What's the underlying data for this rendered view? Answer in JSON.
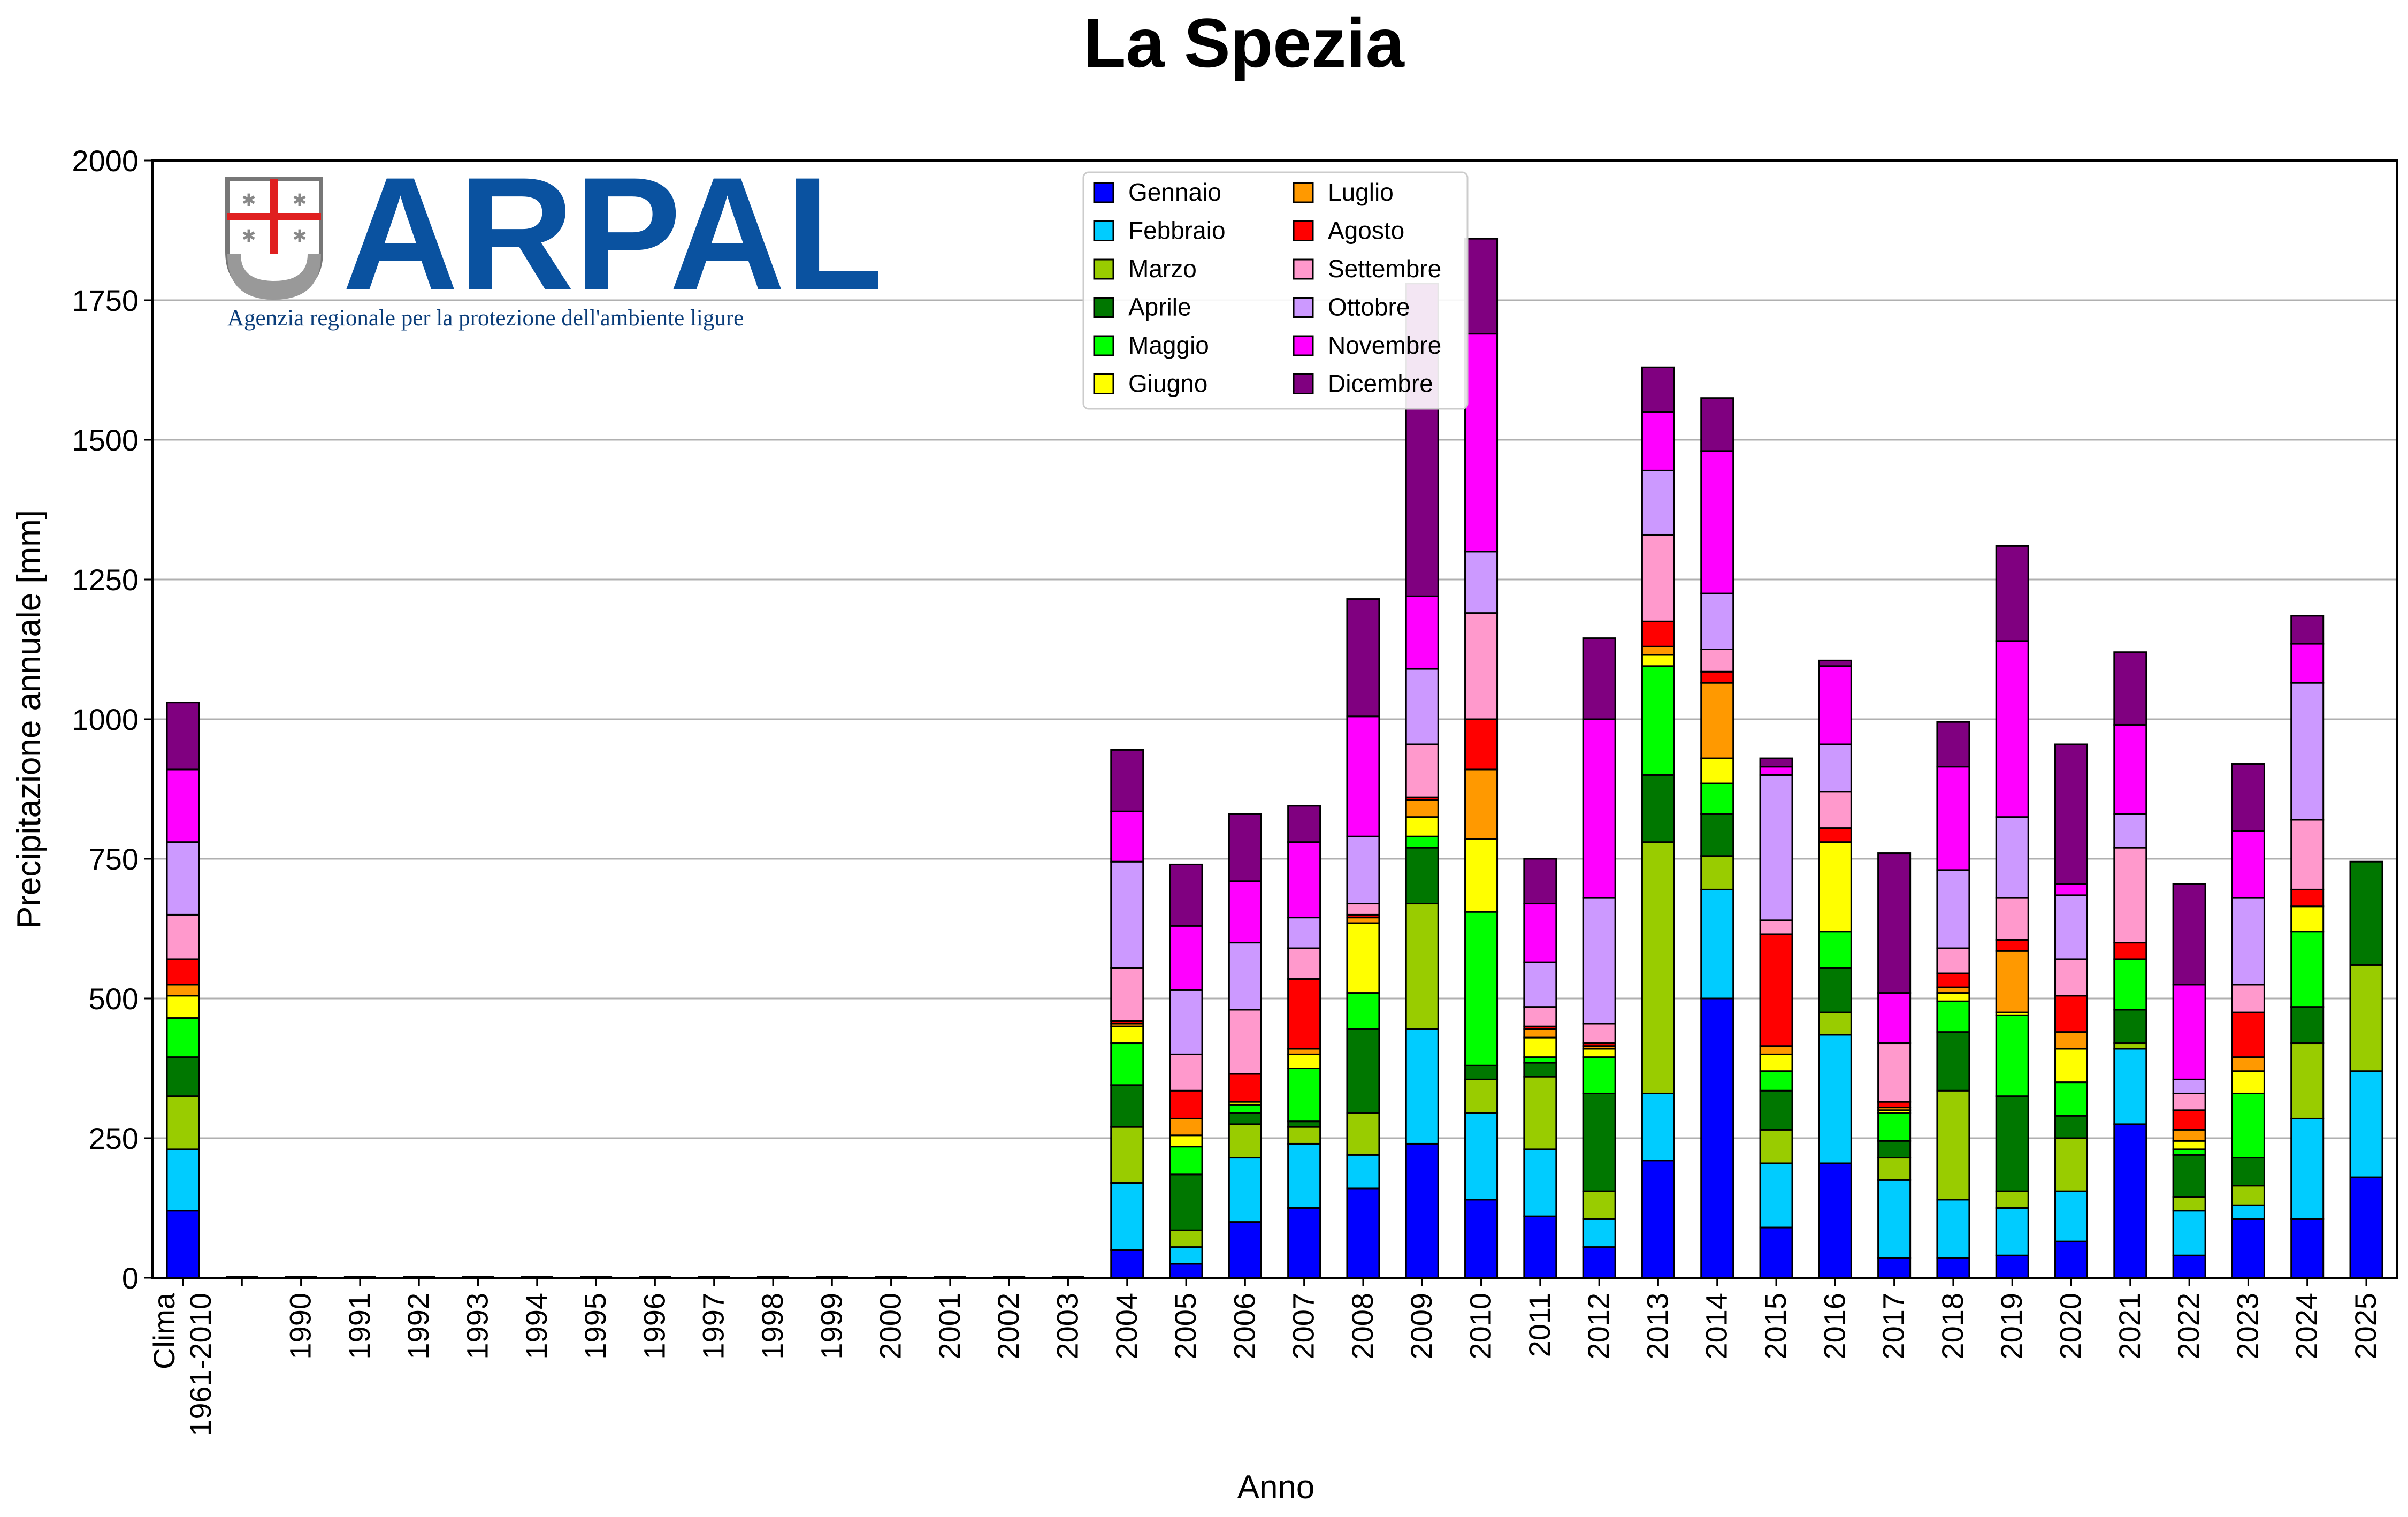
{
  "chart_data": {
    "type": "bar",
    "stacked": true,
    "title": "La Spezia",
    "xlabel": "Anno",
    "ylabel": "Precipitazione annuale [mm]",
    "ylim": [
      0,
      2000
    ],
    "yticks": [
      0,
      250,
      500,
      750,
      1000,
      1250,
      1500,
      1750,
      2000
    ],
    "grid": "horizontal",
    "legend_position": "top-center",
    "legend_columns": 2,
    "categories": [
      "Clima\n1961-2010",
      "",
      "1990",
      "1991",
      "1992",
      "1993",
      "1994",
      "1995",
      "1996",
      "1997",
      "1998",
      "1999",
      "2000",
      "2001",
      "2002",
      "2003",
      "2004",
      "2005",
      "2006",
      "2007",
      "2008",
      "2009",
      "2010",
      "2011",
      "2012",
      "2013",
      "2014",
      "2015",
      "2016",
      "2017",
      "2018",
      "2019",
      "2020",
      "2021",
      "2022",
      "2023",
      "2024",
      "2025"
    ],
    "series": [
      {
        "name": "Gennaio",
        "color": "#0000ff",
        "values": [
          120,
          0,
          0,
          0,
          0,
          0,
          0,
          0,
          0,
          0,
          0,
          0,
          0,
          0,
          0,
          0,
          50,
          25,
          100,
          125,
          160,
          240,
          140,
          110,
          55,
          210,
          500,
          90,
          205,
          35,
          35,
          40,
          65,
          275,
          40,
          105,
          105,
          180
        ]
      },
      {
        "name": "Febbraio",
        "color": "#00ccff",
        "values": [
          110,
          0,
          0,
          0,
          0,
          0,
          0,
          0,
          0,
          0,
          0,
          0,
          0,
          0,
          0,
          0,
          120,
          30,
          115,
          115,
          60,
          205,
          155,
          120,
          50,
          120,
          195,
          115,
          230,
          140,
          105,
          85,
          90,
          135,
          80,
          25,
          180,
          190
        ]
      },
      {
        "name": "Marzo",
        "color": "#99cc00",
        "values": [
          95,
          0,
          0,
          0,
          0,
          0,
          0,
          0,
          0,
          0,
          0,
          0,
          0,
          0,
          0,
          0,
          100,
          30,
          60,
          30,
          75,
          225,
          60,
          130,
          50,
          450,
          60,
          60,
          40,
          40,
          195,
          30,
          95,
          10,
          25,
          35,
          135,
          190
        ]
      },
      {
        "name": "Aprile",
        "color": "#007700",
        "values": [
          70,
          0,
          0,
          0,
          0,
          0,
          0,
          0,
          0,
          0,
          0,
          0,
          0,
          0,
          0,
          0,
          75,
          100,
          20,
          10,
          150,
          100,
          25,
          25,
          175,
          120,
          75,
          70,
          80,
          30,
          105,
          170,
          40,
          60,
          75,
          50,
          65,
          185
        ]
      },
      {
        "name": "Maggio",
        "color": "#00ff00",
        "values": [
          70,
          0,
          0,
          0,
          0,
          0,
          0,
          0,
          0,
          0,
          0,
          0,
          0,
          0,
          0,
          0,
          75,
          50,
          15,
          95,
          65,
          20,
          275,
          10,
          65,
          195,
          55,
          35,
          65,
          50,
          55,
          145,
          60,
          90,
          10,
          115,
          135,
          0
        ]
      },
      {
        "name": "Giugno",
        "color": "#ffff00",
        "values": [
          40,
          0,
          0,
          0,
          0,
          0,
          0,
          0,
          0,
          0,
          0,
          0,
          0,
          0,
          0,
          0,
          30,
          20,
          5,
          25,
          125,
          35,
          130,
          35,
          15,
          20,
          45,
          30,
          160,
          5,
          15,
          5,
          60,
          0,
          15,
          40,
          45,
          0
        ]
      },
      {
        "name": "Luglio",
        "color": "#ff9900",
        "values": [
          20,
          0,
          0,
          0,
          0,
          0,
          0,
          0,
          0,
          0,
          0,
          0,
          0,
          0,
          0,
          0,
          5,
          30,
          0,
          10,
          10,
          30,
          125,
          15,
          5,
          15,
          135,
          15,
          0,
          5,
          10,
          110,
          30,
          0,
          20,
          25,
          0,
          0
        ]
      },
      {
        "name": "Agosto",
        "color": "#ff0000",
        "values": [
          45,
          0,
          0,
          0,
          0,
          0,
          0,
          0,
          0,
          0,
          0,
          0,
          0,
          0,
          0,
          0,
          5,
          50,
          50,
          125,
          5,
          5,
          90,
          5,
          5,
          45,
          20,
          200,
          25,
          10,
          25,
          20,
          65,
          30,
          35,
          80,
          30,
          0
        ]
      },
      {
        "name": "Settembre",
        "color": "#ff99cc",
        "values": [
          80,
          0,
          0,
          0,
          0,
          0,
          0,
          0,
          0,
          0,
          0,
          0,
          0,
          0,
          0,
          0,
          95,
          65,
          115,
          55,
          20,
          95,
          190,
          35,
          35,
          155,
          40,
          25,
          65,
          105,
          45,
          75,
          65,
          170,
          30,
          50,
          125,
          0
        ]
      },
      {
        "name": "Ottobre",
        "color": "#cc99ff",
        "values": [
          130,
          0,
          0,
          0,
          0,
          0,
          0,
          0,
          0,
          0,
          0,
          0,
          0,
          0,
          0,
          0,
          190,
          115,
          120,
          55,
          120,
          135,
          110,
          80,
          225,
          115,
          100,
          260,
          85,
          0,
          140,
          145,
          115,
          60,
          25,
          155,
          245,
          0
        ]
      },
      {
        "name": "Novembre",
        "color": "#ff00ff",
        "values": [
          130,
          0,
          0,
          0,
          0,
          0,
          0,
          0,
          0,
          0,
          0,
          0,
          0,
          0,
          0,
          0,
          90,
          115,
          110,
          135,
          215,
          130,
          390,
          105,
          320,
          105,
          255,
          15,
          140,
          90,
          185,
          315,
          20,
          160,
          170,
          120,
          70,
          0
        ]
      },
      {
        "name": "Dicembre",
        "color": "#800080",
        "values": [
          120,
          0,
          0,
          0,
          0,
          0,
          0,
          0,
          0,
          0,
          0,
          0,
          0,
          0,
          0,
          0,
          110,
          110,
          120,
          65,
          210,
          560,
          170,
          80,
          145,
          80,
          95,
          15,
          10,
          250,
          80,
          170,
          250,
          130,
          180,
          120,
          50,
          0
        ]
      }
    ]
  },
  "logo": {
    "name": "ARPAL",
    "tagline": "Agenzia regionale per la protezione dell'ambiente ligure"
  }
}
